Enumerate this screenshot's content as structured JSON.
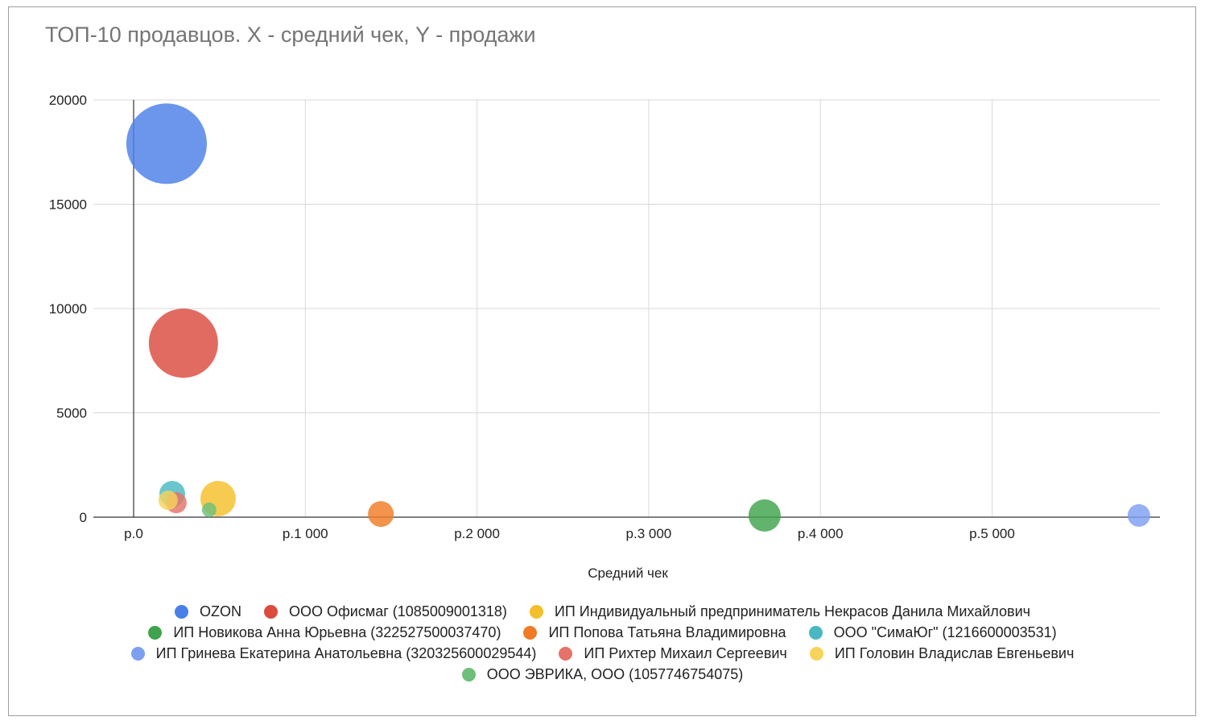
{
  "chart_data": {
    "type": "bubble",
    "title": "ТОП-10 продавцов. X - средний чек, Y - продажи",
    "xlabel": "Средний чек",
    "ylabel": "",
    "xlim": [
      0,
      6000
    ],
    "ylim": [
      0,
      20000
    ],
    "x_ticks": [
      0,
      1000,
      2000,
      3000,
      4000,
      5000
    ],
    "x_tick_labels": [
      "р.0",
      "р.1 000",
      "р.2 000",
      "р.3 000",
      "р.4 000",
      "р.5 000"
    ],
    "y_ticks": [
      0,
      5000,
      10000,
      15000,
      20000
    ],
    "y_tick_labels": [
      "0",
      "5000",
      "10000",
      "15000",
      "20000"
    ],
    "grid": true,
    "legend": "bottom",
    "series": [
      {
        "name": "OZON",
        "x": 192,
        "y": 17900,
        "size": 50,
        "color": "#4a7fe8"
      },
      {
        "name": "ООО Офисмаг (1085009001318)",
        "x": 290,
        "y": 8340,
        "size": 43,
        "color": "#dc4b3e"
      },
      {
        "name": "ИП Индивидуальный предприниматель Некрасов Данила Михайлович",
        "x": 492,
        "y": 890,
        "size": 22,
        "color": "#f4bf2a"
      },
      {
        "name": "ИП Новикова Анна Юрьевна (322527500037470)",
        "x": 3675,
        "y": 80,
        "size": 20,
        "color": "#3fa34d"
      },
      {
        "name": "ИП Попова Татьяна Владимировна",
        "x": 1440,
        "y": 150,
        "size": 16,
        "color": "#f07b24"
      },
      {
        "name": "ООО \"СимаЮг\" (1216600003531)",
        "x": 225,
        "y": 1120,
        "size": 16,
        "color": "#4ab8c1"
      },
      {
        "name": "ИП Гринева Екатерина Анатольевна (320325600029544)",
        "x": 5855,
        "y": 80,
        "size": 14,
        "color": "#7e9ff0"
      },
      {
        "name": "ИП Рихтер Михаил Сергеевич",
        "x": 248,
        "y": 690,
        "size": 13,
        "color": "#e57368"
      },
      {
        "name": "ИП Головин Владислав Евгеньевич",
        "x": 201,
        "y": 810,
        "size": 12,
        "color": "#f7d35a"
      },
      {
        "name": "ООО ЭВРИКА, ООО (1057746754075)",
        "x": 440,
        "y": 350,
        "size": 9,
        "color": "#6dbf79"
      }
    ]
  }
}
